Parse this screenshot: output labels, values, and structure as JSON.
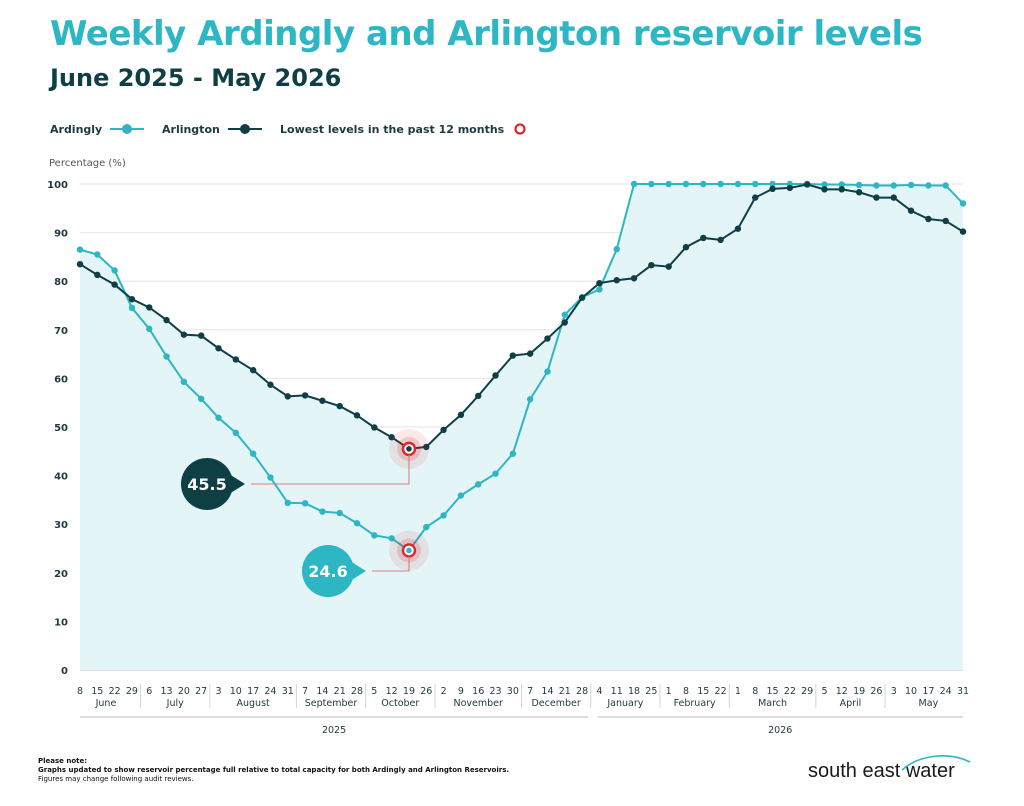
{
  "title": "Weekly Ardingly and Arlington reservoir levels",
  "subtitle": "June 2025 - May 2026",
  "legend": {
    "ardingly": "Ardingly",
    "arlington": "Arlington",
    "lowest": "Lowest levels in the past 12 months"
  },
  "colors": {
    "ardingly": "#2db6c3",
    "arlington": "#0e3f45",
    "area_fill": "#e4f5f7",
    "lowest_marker": "#d7282f",
    "grid": "#e6e6e6"
  },
  "footnote": {
    "heading": "Please note:",
    "line1": "Graphs updated to show reservoir percentage full relative to total capacity for both Ardingly and Arlington Reservoirs.",
    "line2": "Figures may change following audit reviews."
  },
  "brand": "south east water",
  "chart_data": {
    "type": "line",
    "title": "Weekly Ardingly and Arlington reservoir levels",
    "subtitle": "June 2025 - May 2026",
    "ylabel": "Percentage (%)",
    "ylim": [
      0,
      100
    ],
    "yticks": [
      0,
      10,
      20,
      30,
      40,
      50,
      60,
      70,
      80,
      90,
      100
    ],
    "grid": true,
    "legend_position": "top-left",
    "x_day_labels": [
      "8",
      "15",
      "22",
      "29",
      "6",
      "13",
      "20",
      "27",
      "3",
      "10",
      "17",
      "24",
      "31",
      "7",
      "14",
      "21",
      "28",
      "5",
      "12",
      "19",
      "26",
      "2",
      "9",
      "16",
      "23",
      "30",
      "7",
      "14",
      "21",
      "28",
      "4",
      "11",
      "18",
      "25",
      "1",
      "8",
      "15",
      "22",
      "1",
      "8",
      "15",
      "22",
      "29",
      "5",
      "12",
      "19",
      "26",
      "3",
      "10",
      "17",
      "24",
      "31"
    ],
    "x": [
      "2025-06-08",
      "2025-06-15",
      "2025-06-22",
      "2025-06-29",
      "2025-07-06",
      "2025-07-13",
      "2025-07-20",
      "2025-07-27",
      "2025-08-03",
      "2025-08-10",
      "2025-08-17",
      "2025-08-24",
      "2025-08-31",
      "2025-09-07",
      "2025-09-14",
      "2025-09-21",
      "2025-09-28",
      "2025-10-05",
      "2025-10-12",
      "2025-10-19",
      "2025-10-26",
      "2025-11-02",
      "2025-11-09",
      "2025-11-16",
      "2025-11-23",
      "2025-11-30",
      "2025-12-07",
      "2025-12-14",
      "2025-12-21",
      "2025-12-28",
      "2026-01-04",
      "2026-01-11",
      "2026-01-18",
      "2026-01-25",
      "2026-02-01",
      "2026-02-08",
      "2026-02-15",
      "2026-02-22",
      "2026-03-01",
      "2026-03-08",
      "2026-03-15",
      "2026-03-22",
      "2026-03-29",
      "2026-04-05",
      "2026-04-12",
      "2026-04-19",
      "2026-04-26",
      "2026-05-03",
      "2026-05-10",
      "2026-05-17",
      "2026-05-24",
      "2026-05-31"
    ],
    "months": [
      {
        "label": "June",
        "first": 0,
        "last": 3
      },
      {
        "label": "July",
        "first": 4,
        "last": 7
      },
      {
        "label": "August",
        "first": 8,
        "last": 12
      },
      {
        "label": "September",
        "first": 13,
        "last": 16
      },
      {
        "label": "October",
        "first": 17,
        "last": 20
      },
      {
        "label": "November",
        "first": 21,
        "last": 25
      },
      {
        "label": "December",
        "first": 26,
        "last": 29
      },
      {
        "label": "January",
        "first": 30,
        "last": 33
      },
      {
        "label": "February",
        "first": 34,
        "last": 37
      },
      {
        "label": "March",
        "first": 38,
        "last": 42
      },
      {
        "label": "April",
        "first": 43,
        "last": 46
      },
      {
        "label": "May",
        "first": 47,
        "last": 51
      }
    ],
    "years": [
      {
        "label": "2025",
        "first": 0,
        "last": 29
      },
      {
        "label": "2026",
        "first": 30,
        "last": 51
      }
    ],
    "series": [
      {
        "name": "Ardingly",
        "values": [
          86.5,
          85.5,
          82.2,
          74.5,
          70.2,
          64.5,
          59.3,
          55.8,
          51.9,
          48.8,
          44.5,
          39.6,
          34.4,
          34.3,
          32.6,
          32.3,
          30.2,
          27.7,
          27.1,
          24.6,
          29.4,
          31.8,
          35.9,
          38.2,
          40.4,
          44.5,
          55.7,
          61.4,
          73.1,
          76.7,
          78.3,
          86.6,
          100.0,
          100.0,
          100.0,
          100.0,
          100.0,
          100.0,
          100.0,
          100.0,
          100.0,
          100.0,
          100.0,
          99.9,
          99.9,
          99.8,
          99.7,
          99.7,
          99.8,
          99.7,
          99.7,
          96.0
        ]
      },
      {
        "name": "Arlington",
        "values": [
          83.5,
          81.3,
          79.3,
          76.3,
          74.6,
          72.0,
          69.0,
          68.8,
          66.2,
          63.9,
          61.7,
          58.7,
          56.3,
          56.5,
          55.4,
          54.3,
          52.4,
          49.9,
          47.9,
          45.5,
          45.9,
          49.4,
          52.5,
          56.4,
          60.6,
          64.7,
          65.1,
          68.2,
          71.5,
          76.6,
          79.6,
          80.2,
          80.6,
          83.3,
          83.0,
          87.0,
          88.9,
          88.5,
          90.8,
          97.2,
          99.0,
          99.2,
          99.9,
          98.9,
          98.9,
          98.3,
          97.2,
          97.2,
          94.5,
          92.8,
          92.4,
          90.2
        ]
      }
    ],
    "annotations": [
      {
        "series": "Arlington",
        "index": 19,
        "label": "45.5"
      },
      {
        "series": "Ardingly",
        "index": 19,
        "label": "24.6"
      }
    ]
  }
}
